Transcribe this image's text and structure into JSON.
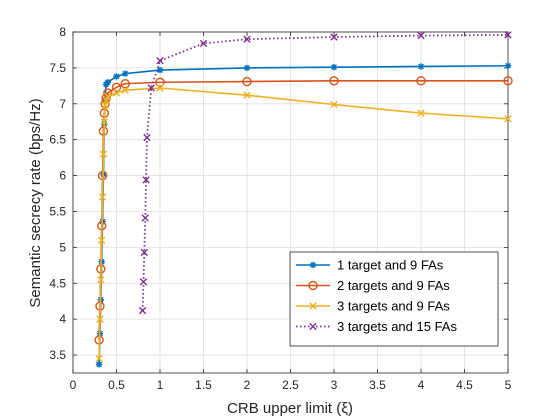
{
  "chart_data": {
    "type": "line",
    "xlabel": "CRB upper limit (ξ)",
    "ylabel": "Semantic secrecy rate (bps/Hz)",
    "xlim": [
      0,
      5
    ],
    "ylim": [
      3.25,
      8
    ],
    "xticks": [
      0,
      0.5,
      1,
      1.5,
      2,
      2.5,
      3,
      3.5,
      4,
      4.5,
      5
    ],
    "yticks": [
      3.5,
      4,
      4.5,
      5,
      5.5,
      6,
      6.5,
      7,
      7.5,
      8
    ],
    "grid": true,
    "legend_position": "bottom-right",
    "series": [
      {
        "name": "1 target and 9 FAs",
        "color": "#0072BD",
        "marker": "asterisk",
        "line_style": "solid",
        "x": [
          0.3,
          0.31,
          0.32,
          0.33,
          0.34,
          0.35,
          0.36,
          0.37,
          0.38,
          0.4,
          0.5,
          0.6,
          1,
          2,
          3,
          4,
          5
        ],
        "y": [
          3.37,
          3.8,
          4.27,
          4.8,
          5.36,
          6.02,
          6.72,
          7.05,
          7.27,
          7.3,
          7.38,
          7.42,
          7.47,
          7.5,
          7.51,
          7.52,
          7.53
        ]
      },
      {
        "name": "2 targets and 9 FAs",
        "color": "#D95319",
        "marker": "circle",
        "line_style": "solid",
        "x": [
          0.3,
          0.31,
          0.32,
          0.33,
          0.34,
          0.35,
          0.36,
          0.37,
          0.38,
          0.4,
          0.5,
          0.6,
          1,
          2,
          3,
          4,
          5
        ],
        "y": [
          3.71,
          4.18,
          4.7,
          5.3,
          6.0,
          6.62,
          6.87,
          7.0,
          7.08,
          7.15,
          7.23,
          7.28,
          7.3,
          7.31,
          7.32,
          7.32,
          7.32
        ]
      },
      {
        "name": "3 targets and 9 FAs",
        "color": "#EDB120",
        "marker": "x",
        "line_style": "solid",
        "x": [
          0.3,
          0.31,
          0.32,
          0.33,
          0.34,
          0.35,
          0.36,
          0.37,
          0.38,
          0.4,
          0.5,
          0.6,
          1,
          2,
          3,
          4,
          5
        ],
        "y": [
          3.45,
          4.0,
          4.55,
          5.1,
          5.7,
          6.3,
          6.75,
          6.98,
          7.05,
          7.1,
          7.15,
          7.19,
          7.22,
          7.12,
          6.99,
          6.87,
          6.79
        ]
      },
      {
        "name": "3 targets and 15 FAs",
        "color": "#7E2F8E",
        "marker": "x",
        "line_style": "dotted",
        "x": [
          0.8,
          0.81,
          0.82,
          0.83,
          0.84,
          0.85,
          0.9,
          1,
          1.5,
          2,
          3,
          4,
          5
        ],
        "y": [
          4.12,
          4.52,
          4.93,
          5.41,
          5.94,
          6.53,
          7.22,
          7.6,
          7.84,
          7.9,
          7.93,
          7.95,
          7.96
        ]
      }
    ]
  }
}
